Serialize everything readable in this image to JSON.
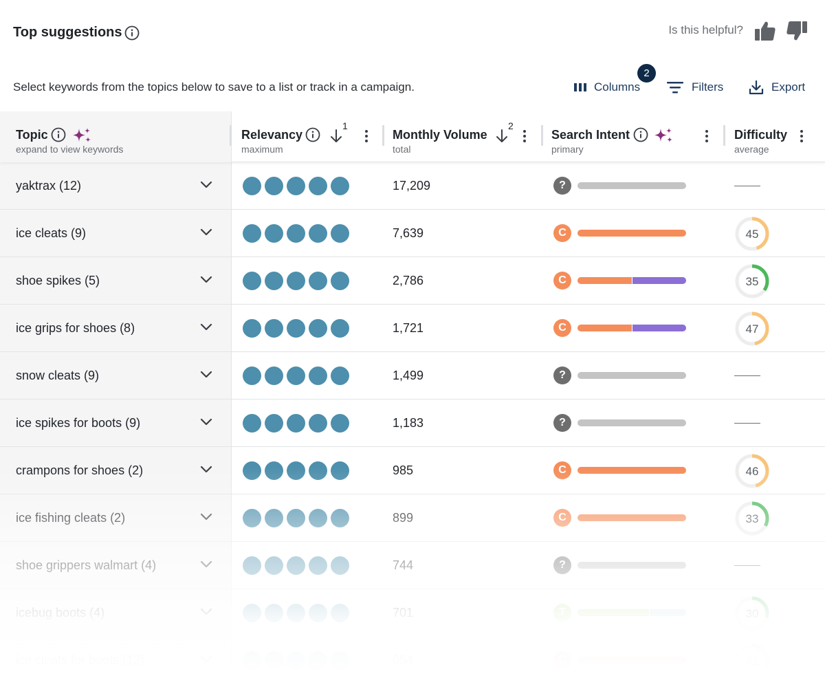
{
  "header": {
    "title": "Top suggestions",
    "helpful_text": "Is this helpful?",
    "subtitle": "Select keywords from the topics below to save to a list or track in a campaign."
  },
  "toolbar": {
    "columns_label": "Columns",
    "columns_badge": "2",
    "filters_label": "Filters",
    "export_label": "Export"
  },
  "columns": {
    "topic": {
      "label": "Topic",
      "sub": "expand to view keywords"
    },
    "relevancy": {
      "label": "Relevancy",
      "sub": "maximum",
      "sort_order": "1"
    },
    "volume": {
      "label": "Monthly Volume",
      "sub": "total",
      "sort_order": "2"
    },
    "intent": {
      "label": "Search Intent",
      "sub": "primary"
    },
    "difficulty": {
      "label": "Difficulty",
      "sub": "average"
    }
  },
  "colors": {
    "relevancy_dot": "#4d8fac",
    "intent_unknown": "#6e6e6e",
    "intent_commercial": "#f58d5a",
    "intent_transactional": "#a8d46f",
    "bar_unknown": "#c4c4c4",
    "bar_commercial": "#f58d5a",
    "bar_informational": "#8c6fd6",
    "bar_transactional_secondary": "#9ccbc9",
    "diff_medium": "#f8c47a",
    "diff_easy": "#4cb85c"
  },
  "rows": [
    {
      "topic": "yaktrax (12)",
      "relevancy": 5,
      "volume": "17,209",
      "intent": "?",
      "intent_type": "unknown",
      "difficulty": null
    },
    {
      "topic": "ice cleats (9)",
      "relevancy": 5,
      "volume": "7,639",
      "intent": "C",
      "intent_type": "commercial",
      "difficulty": "45"
    },
    {
      "topic": "shoe spikes (5)",
      "relevancy": 5,
      "volume": "2,786",
      "intent": "C",
      "intent_type": "commercial-informational",
      "difficulty": "35"
    },
    {
      "topic": "ice grips for shoes (8)",
      "relevancy": 5,
      "volume": "1,721",
      "intent": "C",
      "intent_type": "commercial-informational",
      "difficulty": "47"
    },
    {
      "topic": "snow cleats (9)",
      "relevancy": 5,
      "volume": "1,499",
      "intent": "?",
      "intent_type": "unknown",
      "difficulty": null
    },
    {
      "topic": "ice spikes for boots (9)",
      "relevancy": 5,
      "volume": "1,183",
      "intent": "?",
      "intent_type": "unknown",
      "difficulty": null
    },
    {
      "topic": "crampons for shoes (2)",
      "relevancy": 5,
      "volume": "985",
      "intent": "C",
      "intent_type": "commercial",
      "difficulty": "46"
    },
    {
      "topic": "ice fishing cleats (2)",
      "relevancy": 5,
      "volume": "899",
      "intent": "C",
      "intent_type": "commercial",
      "difficulty": "33"
    },
    {
      "topic": "shoe grippers walmart (4)",
      "relevancy": 5,
      "volume": "744",
      "intent": "?",
      "intent_type": "unknown",
      "difficulty": null
    },
    {
      "topic": "icebug boots (4)",
      "relevancy": 5,
      "volume": "701",
      "intent": "T",
      "intent_type": "transactional",
      "difficulty": "30"
    },
    {
      "topic": "ice cleats for boots (12)",
      "relevancy": 5,
      "volume": "654",
      "intent": "C",
      "intent_type": "commercial",
      "difficulty": "41"
    }
  ]
}
